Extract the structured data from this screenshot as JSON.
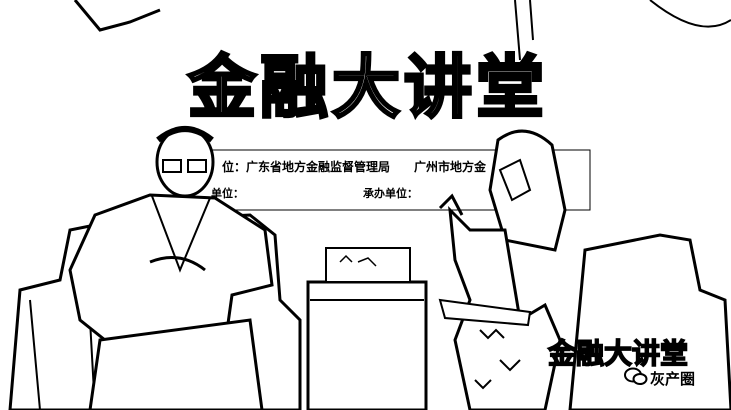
{
  "backdrop": {
    "title": "金融大讲堂",
    "organizer_1": "位：广东省地方金融监督管理局",
    "organizer_2": "广州市地方金",
    "co_unit_label": "单位：",
    "host_unit_label": "承办单位："
  },
  "watermark": {
    "title": "金融大讲堂",
    "brand": "灰产圈"
  },
  "colors": {
    "ink": "#000000",
    "paper": "#ffffff"
  }
}
